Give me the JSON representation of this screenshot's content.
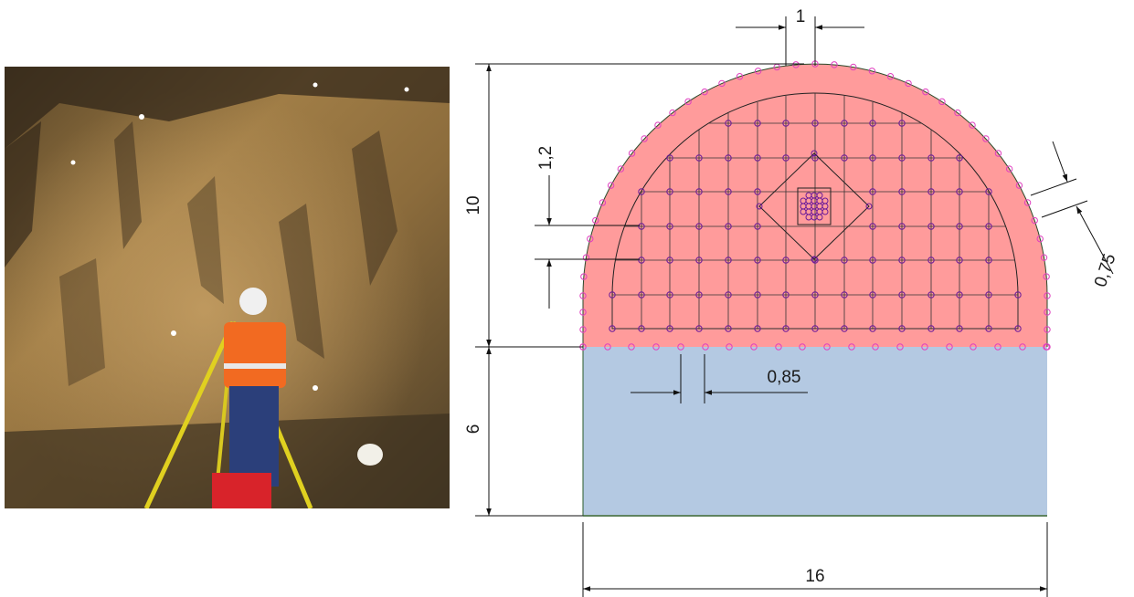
{
  "dimensions": {
    "top_width": "1",
    "left_height_upper": "10",
    "left_height_lower": "6",
    "spacing_vertical": "1,2",
    "spacing_perimeter": "0,75",
    "spacing_bottom": "0,85",
    "bottom_width": "16"
  },
  "colors": {
    "upper_zone": "#ff9b9b",
    "lower_zone": "#b4c9e2",
    "perimeter_points": "#e040c0",
    "grid_points": "#6a1a9a"
  }
}
